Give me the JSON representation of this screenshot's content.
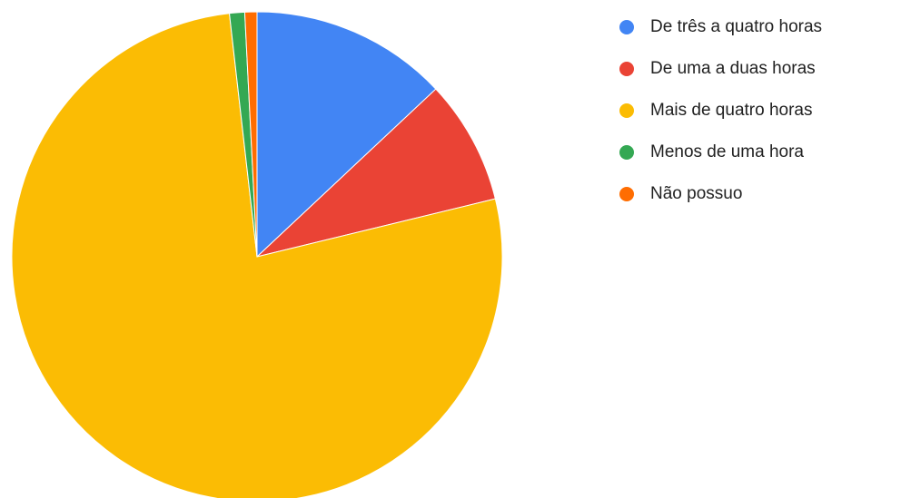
{
  "chart_data": {
    "type": "pie",
    "slices": [
      {
        "label": "De três a quatro horas",
        "value": 13.0,
        "color": "#4285F4"
      },
      {
        "label": "De uma a duas horas",
        "value": 8.2,
        "color": "#EA4335"
      },
      {
        "label": "Mais de quatro horas",
        "value": 77.0,
        "color": "#FBBC04"
      },
      {
        "label": "Menos de uma hora",
        "value": 1.0,
        "color": "#34A853"
      },
      {
        "label": "Não possuo",
        "value": 0.8,
        "color": "#FF6D01"
      }
    ],
    "start_angle_deg": 0,
    "direction": "clockwise",
    "legend_position": "right"
  }
}
